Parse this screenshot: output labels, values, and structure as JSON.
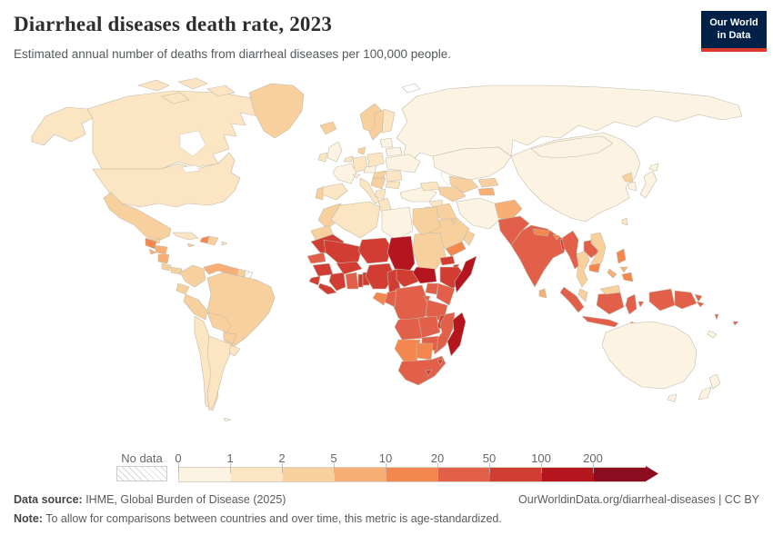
{
  "header": {
    "title": "Diarrheal diseases death rate, 2023",
    "subtitle": "Estimated annual number of deaths from diarrheal diseases per 100,000 people.",
    "logo_line1": "Our World",
    "logo_line2": "in Data",
    "logo_bg": "#002147",
    "logo_accent": "#d93a2b"
  },
  "legend": {
    "no_data_label": "No data",
    "ticks": [
      "0",
      "1",
      "2",
      "5",
      "10",
      "20",
      "50",
      "100",
      "200"
    ],
    "bin_keys": [
      "b1",
      "b2",
      "b3",
      "b4",
      "b5",
      "b6",
      "b7",
      "b8",
      "b9"
    ]
  },
  "footer": {
    "source_label": "Data source:",
    "source_text": " IHME, Global Burden of Disease (2025)",
    "link": "OurWorldinData.org/diarrheal-diseases",
    "separator": " | ",
    "license": "CC BY",
    "note_label": "Note:",
    "note_text": " To allow for comparisons between countries and over time, this metric is age-standardized."
  },
  "chart_data": {
    "type": "heatmap",
    "subtype": "choropleth-world-map",
    "title": "Diarrheal diseases death rate, 2023",
    "subtitle": "Estimated annual number of deaths from diarrheal diseases per 100,000 people.",
    "unit": "deaths per 100,000 people",
    "legend_ticks": [
      0,
      1,
      2,
      5,
      10,
      20,
      50,
      100,
      200
    ],
    "legend_position": "bottom",
    "bins": [
      {
        "key": "b1",
        "range": "0-1",
        "color": "#fdf3e3"
      },
      {
        "key": "b2",
        "range": "1-2",
        "color": "#fbe5c2"
      },
      {
        "key": "b3",
        "range": "2-5",
        "color": "#f8d09e"
      },
      {
        "key": "b4",
        "range": "5-10",
        "color": "#f7af76"
      },
      {
        "key": "b5",
        "range": "10-20",
        "color": "#f4874e"
      },
      {
        "key": "b6",
        "range": "20-50",
        "color": "#e25f49"
      },
      {
        "key": "b7",
        "range": "50-100",
        "color": "#d13d32"
      },
      {
        "key": "b8",
        "range": "100-200",
        "color": "#b4151e"
      },
      {
        "key": "b9",
        "range": "200+",
        "color": "#8a0e20"
      }
    ],
    "values_by_bin": {
      "0-1": [
        "Russia",
        "China",
        "Mongolia",
        "Japan",
        "South Korea",
        "Australia",
        "New Zealand",
        "France",
        "United Kingdom",
        "Ukraine",
        "Belarus",
        "Baltic states",
        "Iran",
        "Turkey",
        "Kazakhstan",
        "Libya",
        "Austria",
        "Czechia",
        "Switzerland"
      ],
      "1-2": [
        "United States",
        "Canada",
        "Cuba",
        "Chile",
        "Argentina",
        "Uruguay",
        "Ireland",
        "Spain",
        "Germany",
        "Poland",
        "Italy",
        "Finland",
        "Greece",
        "Romania",
        "Bulgaria",
        "Algeria",
        "Taiwan"
      ],
      "2-5": [
        "Greenland",
        "Mexico",
        "Costa Rica",
        "Panama",
        "Dominican Republic",
        "Colombia",
        "Ecuador",
        "Peru",
        "Brazil",
        "Bolivia",
        "Paraguay",
        "Suriname",
        "Iceland",
        "Norway",
        "Sweden",
        "Denmark",
        "Portugal",
        "Hungary",
        "Balkans",
        "Morocco",
        "Western Sahara",
        "Egypt",
        "Sudan",
        "Saudi Arabia",
        "Oman",
        "Iraq",
        "Uzbekistan",
        "Turkmenistan",
        "Kyrgyzstan",
        "Thailand",
        "Vietnam",
        "Malaysia",
        "North Korea"
      ],
      "5-10": [
        "Honduras",
        "Nicaragua",
        "El Salvador",
        "Venezuela",
        "Guyana",
        "Tajikistan",
        "Afghanistan",
        "Sri Lanka",
        "Philippines (Visayas)"
      ],
      "10-20": [
        "Guatemala",
        "Haiti",
        "Yemen",
        "Nepal",
        "Bhutan",
        "Gabon",
        "Namibia",
        "Botswana",
        "Cambodia",
        "Philippines (Luzon, Mindanao)",
        "Timor"
      ],
      "20-50": [
        "Pakistan",
        "India",
        "Myanmar",
        "Laos",
        "Indonesia",
        "Papua New Guinea",
        "Solomon Islands",
        "Fiji",
        "Vanuatu",
        "Senegal",
        "Ghana",
        "Kenya",
        "Uganda",
        "DR Congo",
        "Congo",
        "Tanzania",
        "Angola",
        "Zambia",
        "Mozambique",
        "Zimbabwe",
        "South Africa"
      ],
      "50-100": [
        "Mauritania",
        "Mali",
        "Niger",
        "Nigeria",
        "Burkina Faso",
        "Guinea",
        "Sierra Leone",
        "Liberia",
        "Cote d'Ivoire",
        "Togo",
        "Benin",
        "Cameroon",
        "Central African Republic",
        "Ethiopia",
        "Eritrea",
        "Djibouti",
        "Malawi",
        "Lesotho",
        "Eswatini",
        "Bangladesh"
      ],
      "100-200": [
        "Chad",
        "South Sudan",
        "Somalia",
        "Madagascar"
      ],
      "no_data": [
        "French Guiana"
      ]
    }
  },
  "map": {
    "ocean": "#ffffff",
    "border_color": "#c2baa9",
    "bin_colors": {
      "b1": "#fdf3e3",
      "b2": "#fbe5c2",
      "b3": "#f8d09e",
      "b4": "#f7af76",
      "b5": "#f4874e",
      "b6": "#e25f49",
      "b7": "#d13d32",
      "b8": "#b4151e",
      "b9": "#8a0e20",
      "w": "#ffffff"
    },
    "countries": {
      "alaska": "b2",
      "canada": "b2",
      "arctic1": "b2",
      "arctic2": "b2",
      "arctic3": "b2",
      "arctic4": "b2",
      "greenland": "b3",
      "usa": "b2",
      "mexico": "b3",
      "guatemala": "b5",
      "belize": "b3",
      "honduras": "b4",
      "elsalvador": "b4",
      "nicaragua": "b4",
      "costarica": "b3",
      "panama": "b3",
      "cuba": "b2",
      "jamaica": "b3",
      "haiti": "b5",
      "domrep": "b3",
      "puertorico": "b2",
      "colombia": "b3",
      "venezuela": "b4",
      "guyana": "b4",
      "suriname": "b3",
      "frguiana": "nd",
      "ecuador": "b3",
      "peru": "b3",
      "brazil": "b3",
      "bolivia": "b3",
      "paraguay": "b3",
      "chile": "b2",
      "argentina": "b2",
      "uruguay": "b2",
      "falklands": "b1",
      "iceland": "b3",
      "uk": "b1",
      "ireland": "b2",
      "norway": "b3",
      "sweden": "b3",
      "finland": "b2",
      "denmark": "b3",
      "germany": "b2",
      "benelux": "b2",
      "france": "b1",
      "spain": "b2",
      "portugal": "b3",
      "italy": "b2",
      "switzerland": "b1",
      "austriacz": "b1",
      "poland": "b2",
      "hungary": "b3",
      "balkans": "b3",
      "greece": "b2",
      "romania": "b2",
      "bulgaria": "b2",
      "ukraine": "b1",
      "belarus": "b1",
      "baltics": "b1",
      "russia": "b1",
      "svalbard": "w",
      "turkey": "b1",
      "caucasus": "b2",
      "kazakhstan": "b1",
      "uzbekistan": "b3",
      "turkmenistan": "b3",
      "kyrgyzstan": "b3",
      "tajikistan": "b4",
      "syria": "b2",
      "iraq": "b3",
      "jordanisrael": "b2",
      "saudi": "b3",
      "yemen": "b5",
      "oman": "b3",
      "kuwait": "b3",
      "iran": "b1",
      "afghanistan": "b4",
      "pakistan": "b6",
      "india": "b6",
      "nepal": "b5",
      "bhutan": "b5",
      "bangladesh": "b7",
      "srilanka": "b4",
      "china": "b1",
      "mongolia": "b1",
      "nkorea": "b3",
      "skorea": "b1",
      "japan": "b1",
      "hokkaido": "b1",
      "taiwan": "b2",
      "myanmar": "b6",
      "thailand": "b3",
      "laos": "b6",
      "vietnam": "b3",
      "cambodia": "b5",
      "malaysiapen": "b3",
      "borneomy": "b3",
      "sumatra": "b6",
      "java": "b6",
      "kalimantan": "b6",
      "sulawesi": "b6",
      "papuaid": "b6",
      "moluccas": "b6",
      "png": "b6",
      "newbritain": "b6",
      "luzon": "b5",
      "visayas": "b4",
      "mindanao": "b5",
      "palawan": "b4",
      "timor": "b5",
      "australia": "b1",
      "tasmania": "b1",
      "nzn": "b1",
      "nzs": "b1",
      "fiji": "b6",
      "vanuatu": "b6",
      "solomons": "b6",
      "newcaledonia": "b1",
      "morocco": "b3",
      "wsahara": "b3",
      "algeria": "b2",
      "tunisia": "b2",
      "libya": "b1",
      "egypt": "b3",
      "mauritania": "b7",
      "senegal": "b6",
      "guinea": "b7",
      "sierraleone": "b7",
      "liberia": "b7",
      "ivorycoast": "b7",
      "ghana": "b6",
      "togo": "b7",
      "benin": "b7",
      "burkinafaso": "b7",
      "mali": "b7",
      "niger": "b7",
      "nigeria": "b7",
      "chad": "b8",
      "sudan": "b3",
      "eritrea": "b7",
      "djibouti": "b7",
      "ethiopia": "b7",
      "somalia": "b8",
      "southsudan": "b8",
      "car": "b7",
      "cameroon": "b7",
      "uganda": "b6",
      "kenya": "b6",
      "rwanda": "b6",
      "drc": "b6",
      "congo": "b6",
      "gabon": "b5",
      "tanzania": "b6",
      "angola": "b6",
      "zambia": "b6",
      "malawi": "b7",
      "mozambique": "b6",
      "zimbabwe": "b6",
      "namibia": "b5",
      "botswana": "b5",
      "southafrica": "b6",
      "lesotho": "b7",
      "eswatini": "b7",
      "madagascar": "b8"
    }
  }
}
